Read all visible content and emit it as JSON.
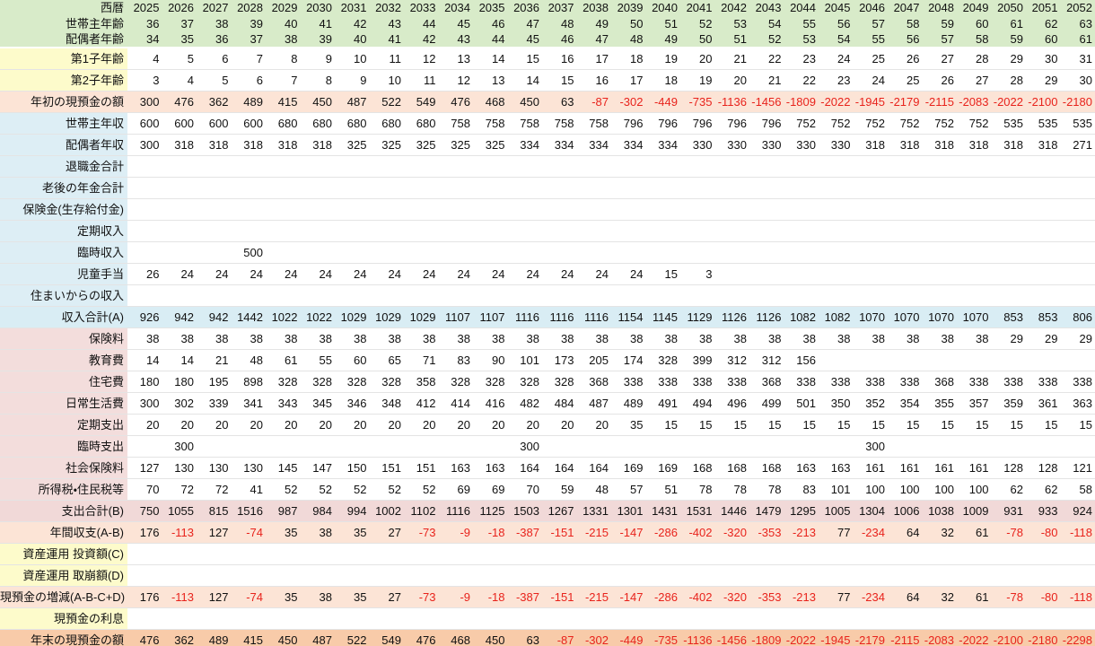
{
  "table": {
    "header": {
      "label": "西暦",
      "years": [
        2025,
        2026,
        2027,
        2028,
        2029,
        2030,
        2031,
        2032,
        2033,
        2034,
        2035,
        2036,
        2037,
        2038,
        2039,
        2040,
        2041,
        2042,
        2043,
        2044,
        2045,
        2046,
        2047,
        2048,
        2049,
        2050,
        2051,
        2052
      ]
    },
    "rows": [
      {
        "label": "世帯主年齢",
        "values": [
          36,
          37,
          38,
          39,
          40,
          41,
          42,
          43,
          44,
          45,
          46,
          47,
          48,
          49,
          50,
          51,
          52,
          53,
          54,
          55,
          56,
          57,
          58,
          59,
          60,
          61,
          62,
          63
        ]
      },
      {
        "label": "配偶者年齢",
        "values": [
          34,
          35,
          36,
          37,
          38,
          39,
          40,
          41,
          42,
          43,
          44,
          45,
          46,
          47,
          48,
          49,
          50,
          51,
          52,
          53,
          54,
          55,
          56,
          57,
          58,
          59,
          60,
          61
        ]
      },
      {
        "label": "第1子年齢",
        "values": [
          4,
          5,
          6,
          7,
          8,
          9,
          10,
          11,
          12,
          13,
          14,
          15,
          16,
          17,
          18,
          19,
          20,
          21,
          22,
          23,
          24,
          25,
          26,
          27,
          28,
          29,
          30,
          31
        ]
      },
      {
        "label": "第2子年齢",
        "values": [
          3,
          4,
          5,
          6,
          7,
          8,
          9,
          10,
          11,
          12,
          13,
          14,
          15,
          16,
          17,
          18,
          19,
          20,
          21,
          22,
          23,
          24,
          25,
          26,
          27,
          28,
          29,
          30
        ]
      },
      {
        "label": "年初の現預金の額",
        "values": [
          300,
          476,
          362,
          489,
          415,
          450,
          487,
          522,
          549,
          476,
          468,
          450,
          63,
          -87,
          -302,
          -449,
          -735,
          -1136,
          -1456,
          -1809,
          -2022,
          -1945,
          -2179,
          -2115,
          -2083,
          -2022,
          -2100,
          -2180
        ]
      },
      {
        "label": "世帯主年収",
        "values": [
          600,
          600,
          600,
          600,
          680,
          680,
          680,
          680,
          680,
          758,
          758,
          758,
          758,
          758,
          796,
          796,
          796,
          796,
          796,
          752,
          752,
          752,
          752,
          752,
          752,
          535,
          535,
          535
        ]
      },
      {
        "label": "配偶者年収",
        "values": [
          300,
          318,
          318,
          318,
          318,
          318,
          325,
          325,
          325,
          325,
          325,
          334,
          334,
          334,
          334,
          334,
          330,
          330,
          330,
          330,
          330,
          318,
          318,
          318,
          318,
          318,
          318,
          271
        ]
      },
      {
        "label": "退職金合計",
        "values": [
          null,
          null,
          null,
          null,
          null,
          null,
          null,
          null,
          null,
          null,
          null,
          null,
          null,
          null,
          null,
          null,
          null,
          null,
          null,
          null,
          null,
          null,
          null,
          null,
          null,
          null,
          null,
          null
        ]
      },
      {
        "label": "老後の年金合計",
        "values": [
          null,
          null,
          null,
          null,
          null,
          null,
          null,
          null,
          null,
          null,
          null,
          null,
          null,
          null,
          null,
          null,
          null,
          null,
          null,
          null,
          null,
          null,
          null,
          null,
          null,
          null,
          null,
          null
        ]
      },
      {
        "label": "保険金(生存給付金)",
        "values": [
          null,
          null,
          null,
          null,
          null,
          null,
          null,
          null,
          null,
          null,
          null,
          null,
          null,
          null,
          null,
          null,
          null,
          null,
          null,
          null,
          null,
          null,
          null,
          null,
          null,
          null,
          null,
          null
        ]
      },
      {
        "label": "定期収入",
        "values": [
          null,
          null,
          null,
          null,
          null,
          null,
          null,
          null,
          null,
          null,
          null,
          null,
          null,
          null,
          null,
          null,
          null,
          null,
          null,
          null,
          null,
          null,
          null,
          null,
          null,
          null,
          null,
          null
        ]
      },
      {
        "label": "臨時収入",
        "values": [
          null,
          null,
          null,
          500,
          null,
          null,
          null,
          null,
          null,
          null,
          null,
          null,
          null,
          null,
          null,
          null,
          null,
          null,
          null,
          null,
          null,
          null,
          null,
          null,
          null,
          null,
          null,
          null
        ]
      },
      {
        "label": "児童手当",
        "values": [
          26,
          24,
          24,
          24,
          24,
          24,
          24,
          24,
          24,
          24,
          24,
          24,
          24,
          24,
          24,
          15,
          3,
          null,
          null,
          null,
          null,
          null,
          null,
          null,
          null,
          null,
          null,
          null
        ]
      },
      {
        "label": "住まいからの収入",
        "values": [
          null,
          null,
          null,
          null,
          null,
          null,
          null,
          null,
          null,
          null,
          null,
          null,
          null,
          null,
          null,
          null,
          null,
          null,
          null,
          null,
          null,
          null,
          null,
          null,
          null,
          null,
          null,
          null
        ]
      },
      {
        "label": "収入合計(A)",
        "values": [
          926,
          942,
          942,
          1442,
          1022,
          1022,
          1029,
          1029,
          1029,
          1107,
          1107,
          1116,
          1116,
          1116,
          1154,
          1145,
          1129,
          1126,
          1126,
          1082,
          1082,
          1070,
          1070,
          1070,
          1070,
          853,
          853,
          806
        ]
      },
      {
        "label": "保険料",
        "values": [
          38,
          38,
          38,
          38,
          38,
          38,
          38,
          38,
          38,
          38,
          38,
          38,
          38,
          38,
          38,
          38,
          38,
          38,
          38,
          38,
          38,
          38,
          38,
          38,
          38,
          29,
          29,
          29
        ]
      },
      {
        "label": "教育費",
        "values": [
          14,
          14,
          21,
          48,
          61,
          55,
          60,
          65,
          71,
          83,
          90,
          101,
          173,
          205,
          174,
          328,
          399,
          312,
          312,
          156,
          null,
          null,
          null,
          null,
          null,
          null,
          null,
          null
        ]
      },
      {
        "label": "住宅費",
        "values": [
          180,
          180,
          195,
          898,
          328,
          328,
          328,
          328,
          358,
          328,
          328,
          328,
          328,
          368,
          338,
          338,
          338,
          338,
          368,
          338,
          338,
          338,
          338,
          368,
          338,
          338,
          338,
          338
        ]
      },
      {
        "label": "日常生活費",
        "values": [
          300,
          302,
          339,
          341,
          343,
          345,
          346,
          348,
          412,
          414,
          416,
          482,
          484,
          487,
          489,
          491,
          494,
          496,
          499,
          501,
          350,
          352,
          354,
          355,
          357,
          359,
          361,
          363
        ]
      },
      {
        "label": "定期支出",
        "values": [
          20,
          20,
          20,
          20,
          20,
          20,
          20,
          20,
          20,
          20,
          20,
          20,
          20,
          20,
          35,
          15,
          15,
          15,
          15,
          15,
          15,
          15,
          15,
          15,
          15,
          15,
          15,
          15
        ]
      },
      {
        "label": "臨時支出",
        "values": [
          null,
          300,
          null,
          null,
          null,
          null,
          null,
          null,
          null,
          null,
          null,
          300,
          null,
          null,
          null,
          null,
          null,
          null,
          null,
          null,
          null,
          300,
          null,
          null,
          null,
          null,
          null,
          null
        ]
      },
      {
        "label": "社会保険料",
        "values": [
          127,
          130,
          130,
          130,
          145,
          147,
          150,
          151,
          151,
          163,
          163,
          164,
          164,
          164,
          169,
          169,
          168,
          168,
          168,
          163,
          163,
          161,
          161,
          161,
          161,
          128,
          128,
          121
        ]
      },
      {
        "label": "所得税・住民税等",
        "values": [
          70,
          72,
          72,
          41,
          52,
          52,
          52,
          52,
          52,
          69,
          69,
          70,
          59,
          48,
          57,
          51,
          78,
          78,
          78,
          83,
          101,
          100,
          100,
          100,
          100,
          62,
          62,
          58
        ]
      },
      {
        "label": "支出合計(B)",
        "values": [
          750,
          1055,
          815,
          1516,
          987,
          984,
          994,
          1002,
          1102,
          1116,
          1125,
          1503,
          1267,
          1331,
          1301,
          1431,
          1531,
          1446,
          1479,
          1295,
          1005,
          1304,
          1006,
          1038,
          1009,
          931,
          933,
          924
        ]
      },
      {
        "label": "年間収支(A-B)",
        "values": [
          176,
          -113,
          127,
          -74,
          35,
          38,
          35,
          27,
          -73,
          -9,
          -18,
          -387,
          -151,
          -215,
          -147,
          -286,
          -402,
          -320,
          -353,
          -213,
          77,
          -234,
          64,
          32,
          61,
          -78,
          -80,
          -118
        ]
      },
      {
        "label": "資産運用 投資額(C)",
        "values": [
          null,
          null,
          null,
          null,
          null,
          null,
          null,
          null,
          null,
          null,
          null,
          null,
          null,
          null,
          null,
          null,
          null,
          null,
          null,
          null,
          null,
          null,
          null,
          null,
          null,
          null,
          null,
          null
        ]
      },
      {
        "label": "資産運用 取崩額(D)",
        "values": [
          null,
          null,
          null,
          null,
          null,
          null,
          null,
          null,
          null,
          null,
          null,
          null,
          null,
          null,
          null,
          null,
          null,
          null,
          null,
          null,
          null,
          null,
          null,
          null,
          null,
          null,
          null,
          null
        ]
      },
      {
        "label": "現預金の増減(A-B-C+D)",
        "values": [
          176,
          -113,
          127,
          -74,
          35,
          38,
          35,
          27,
          -73,
          -9,
          -18,
          -387,
          -151,
          -215,
          -147,
          -286,
          -402,
          -320,
          -353,
          -213,
          77,
          -234,
          64,
          32,
          61,
          -78,
          -80,
          -118
        ]
      },
      {
        "label": "現預金の利息",
        "values": [
          null,
          null,
          null,
          null,
          null,
          null,
          null,
          null,
          null,
          null,
          null,
          null,
          null,
          null,
          null,
          null,
          null,
          null,
          null,
          null,
          null,
          null,
          null,
          null,
          null,
          null,
          null,
          null
        ]
      },
      {
        "label": "年末の現預金の額",
        "values": [
          476,
          362,
          489,
          415,
          450,
          487,
          522,
          549,
          476,
          468,
          450,
          63,
          -87,
          -302,
          -449,
          -735,
          -1136,
          -1456,
          -1809,
          -2022,
          -1945,
          -2179,
          -2115,
          -2083,
          -2022,
          -2100,
          -2180,
          -2298
        ]
      }
    ]
  }
}
